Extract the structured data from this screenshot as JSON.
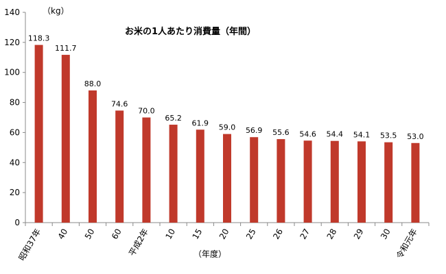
{
  "chart_data": {
    "type": "bar",
    "title": "お米の1人あたり消費量（年間）",
    "ylabel": "（kg）",
    "xlabel": "（年度）",
    "ylim": [
      0,
      140
    ],
    "yticks": [
      0,
      20,
      40,
      60,
      80,
      100,
      120,
      140
    ],
    "grid": false,
    "categories": [
      "昭和37年",
      "40",
      "50",
      "60",
      "平成2年",
      "10",
      "15",
      "20",
      "25",
      "26",
      "27",
      "28",
      "29",
      "30",
      "令和元年"
    ],
    "values": [
      118.3,
      111.7,
      88.0,
      74.6,
      70.0,
      65.2,
      61.9,
      59.0,
      56.9,
      55.6,
      54.6,
      54.4,
      54.1,
      53.5,
      53.0
    ],
    "value_labels": [
      "118.3",
      "111.7",
      "88.0",
      "74.6",
      "70.0",
      "65.2",
      "61.9",
      "59.0",
      "56.9",
      "55.6",
      "54.6",
      "54.4",
      "54.1",
      "53.5",
      "53.0"
    ],
    "bar_color": "#c0392b"
  }
}
